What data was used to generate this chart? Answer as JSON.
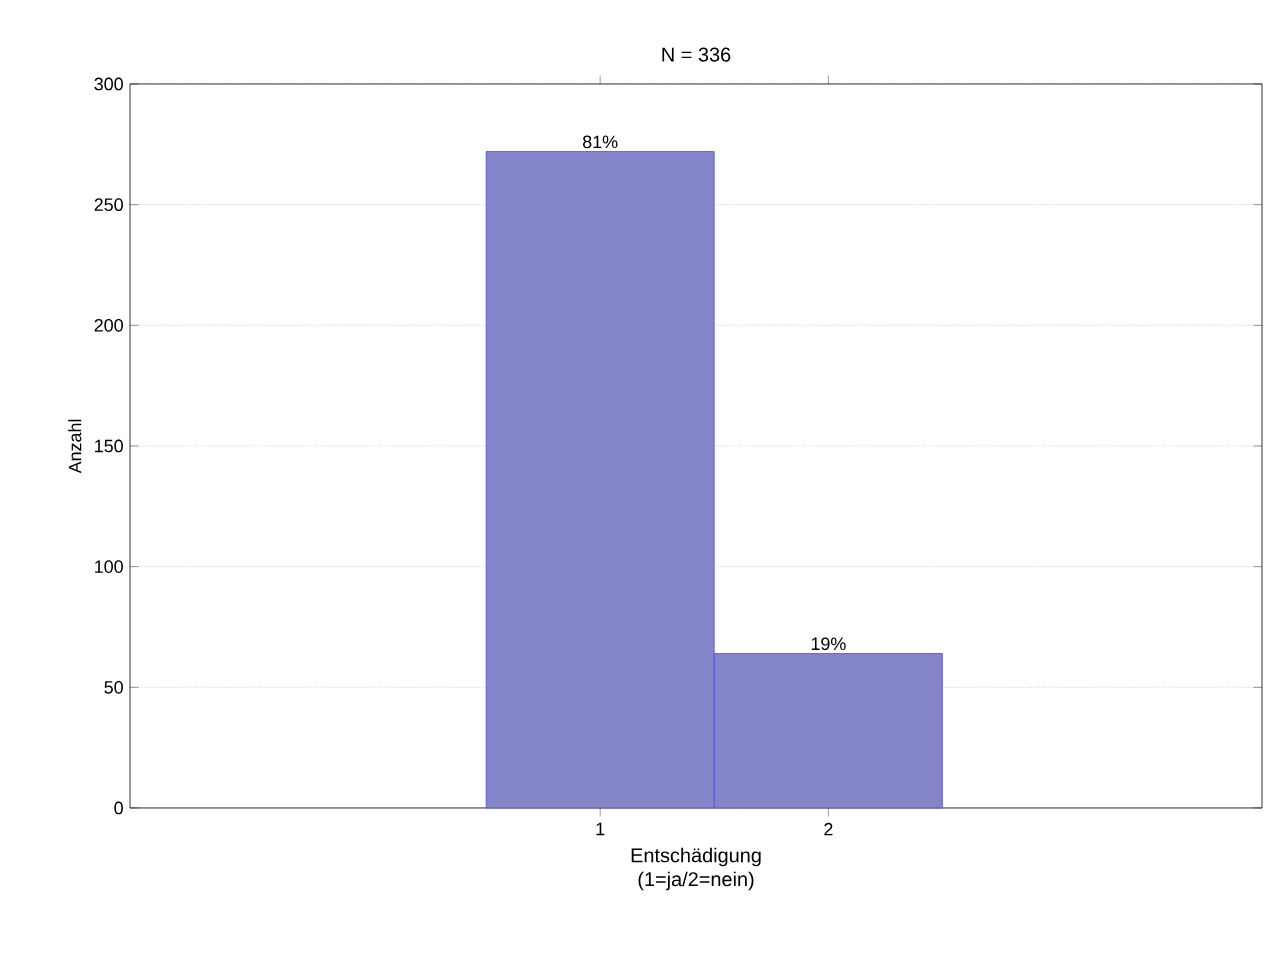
{
  "chart_data": {
    "type": "bar",
    "title": "N = 336",
    "xlabel": "Entschädigung (1=ja/2=nein)",
    "ylabel": "Anzahl",
    "categories": [
      "1",
      "2"
    ],
    "values": [
      272,
      64
    ],
    "color": "#8484c8",
    "annotations": [
      "81%",
      "19%"
    ],
    "ylim": [
      0,
      300
    ],
    "yticks": [
      0,
      50,
      100,
      150,
      200,
      250,
      300
    ],
    "grid": "y"
  }
}
